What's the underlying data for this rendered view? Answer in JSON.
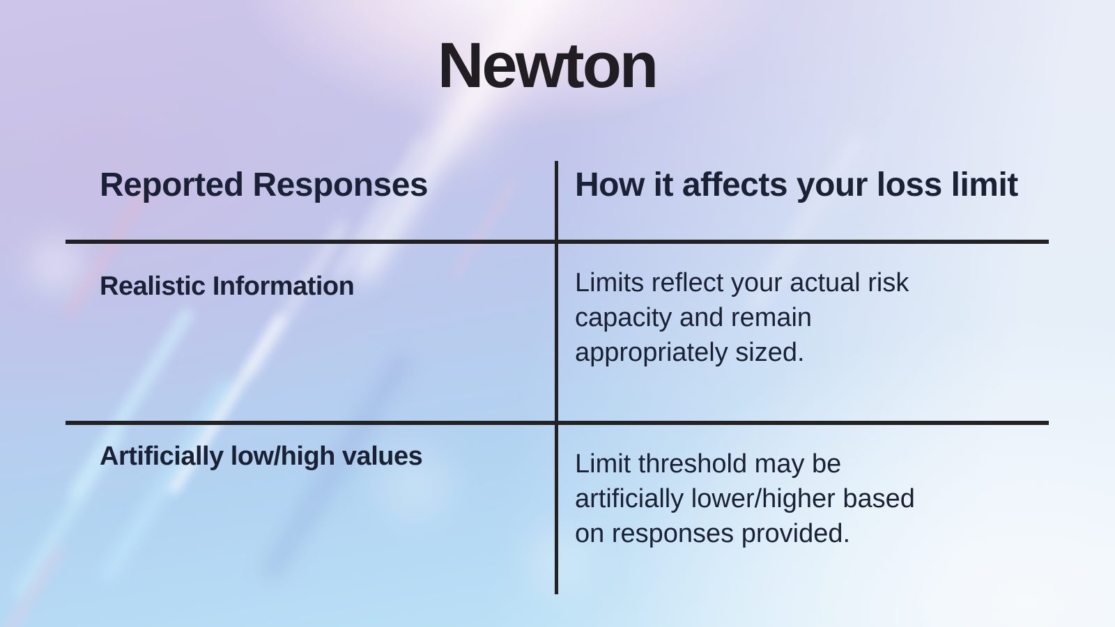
{
  "title": "Newton",
  "table": {
    "col1_header": "Reported Responses",
    "col2_header": "How it affects your loss limit",
    "rows": [
      {
        "response": "Realistic Information",
        "effect": "Limits reflect your actual risk\ncapacity and remain\nappropriately sized."
      },
      {
        "response": "Artificially low/high values",
        "effect": "Limit threshold may be\nartificially lower/higher based\non responses provided."
      }
    ]
  },
  "colors": {
    "text": "#1b2134",
    "title": "#201e22",
    "divider": "#222222",
    "bg_lavender_top_left": "#cfc7eb",
    "bg_periwinkle_mid": "#b7c8ec",
    "bg_blue_bottom_left": "#b3d6f2",
    "bg_cyan_bottom": "#c2e8f7",
    "bg_white_right": "#f3f6fa",
    "streak_pink": "#e8b8d0",
    "streak_cyan": "#bfe7fa",
    "streak_white": "#ffffff"
  }
}
